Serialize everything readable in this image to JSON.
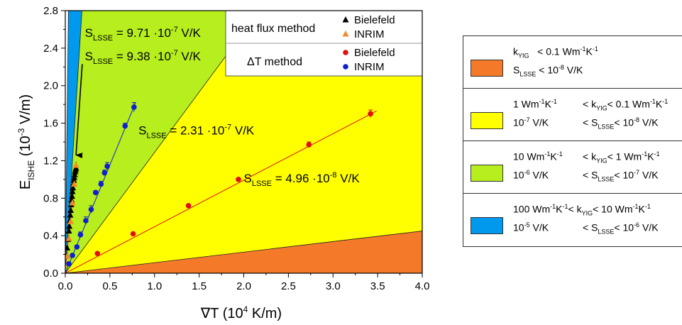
{
  "chart_data": {
    "type": "scatter",
    "xlabel": "∇T (10⁴ K/m)",
    "ylabel": "E_ISHE (10⁻³ V/m)",
    "xlim": [
      0,
      4.0
    ],
    "ylim": [
      0,
      2.8
    ],
    "xticks": [
      "0.0",
      "0.5",
      "1.0",
      "1.5",
      "2.0",
      "2.5",
      "3.0",
      "3.5",
      "4.0"
    ],
    "yticks": [
      "0.0",
      "0.4",
      "0.8",
      "1.2",
      "1.6",
      "2.0",
      "2.4",
      "2.8"
    ],
    "regions": [
      {
        "name": "orange",
        "color": "#f47a2a",
        "slope_top": 0.1125
      },
      {
        "name": "yellow",
        "color": "#ffff00",
        "slope_top": 1.2875
      },
      {
        "name": "green",
        "color": "#b6ee1e",
        "slope_top": 15.0
      },
      {
        "name": "blue",
        "color": "#0099ee",
        "slope_top": 80.0
      }
    ],
    "annotations": [
      {
        "text": "S_LSSE = 9.71 ·10⁻⁷ V/K",
        "main": "S",
        "sub": "LSSE",
        "rest": " = 9.71 ·10",
        "sup": "-7",
        "tail": " V/K",
        "x": 0.22,
        "y": 2.52
      },
      {
        "text": "S_LSSE = 9.38 ·10⁻⁷ V/K",
        "main": "S",
        "sub": "LSSE",
        "rest": " = 9.38 ·10",
        "sup": "-7",
        "tail": " V/K",
        "x": 0.22,
        "y": 2.27
      },
      {
        "text": "S_LSSE = 2.31 ·10⁻⁷ V/K",
        "main": "S",
        "sub": "LSSE",
        "rest": " = 2.31 ·10",
        "sup": "-7",
        "tail": " V/K",
        "x": 0.82,
        "y": 1.48
      },
      {
        "text": "S_LSSE = 4.96 ·10⁻⁸ V/K",
        "main": "S",
        "sub": "LSSE",
        "rest": " = 4.96 ·10",
        "sup": "-8",
        "tail": " V/K",
        "x": 2.0,
        "y": 0.97
      }
    ],
    "arrow": {
      "from": [
        0.19,
        2.23
      ],
      "to": [
        0.12,
        1.26
      ]
    },
    "legend": {
      "position": "top-right",
      "group1_title": "heat flux method",
      "group2_title": "ΔT method",
      "entries": [
        {
          "group": 1,
          "label": "Bielefeld",
          "marker": "triangle",
          "color": "#000000"
        },
        {
          "group": 1,
          "label": "INRIM",
          "marker": "triangle",
          "color": "#f48a2a"
        },
        {
          "group": 2,
          "label": "Bielefeld",
          "marker": "circle",
          "color": "#e01010"
        },
        {
          "group": 2,
          "label": "INRIM",
          "marker": "circle",
          "color": "#1020d0"
        }
      ]
    },
    "series": [
      {
        "label_ref": "heat flux method Bielefeld",
        "marker": "triangle",
        "color": "#000000",
        "fit_slope": 9.71,
        "x": [
          0.015,
          0.02,
          0.03,
          0.04,
          0.045,
          0.05,
          0.055,
          0.06,
          0.065,
          0.07,
          0.075,
          0.08,
          0.085,
          0.09,
          0.095,
          0.1,
          0.105,
          0.11,
          0.115,
          0.12
        ],
        "y": [
          0.19,
          0.27,
          0.36,
          0.45,
          0.5,
          0.56,
          0.62,
          0.67,
          0.73,
          0.78,
          0.82,
          0.87,
          0.91,
          0.95,
          0.99,
          1.02,
          1.05,
          1.08,
          1.1,
          1.12
        ]
      },
      {
        "label_ref": "heat flux method INRIM",
        "marker": "triangle",
        "color": "#f48a2a",
        "fit_slope": 9.38,
        "x": [
          0.02,
          0.04,
          0.06,
          0.08,
          0.1,
          0.12
        ],
        "y": [
          0.18,
          0.37,
          0.55,
          0.75,
          0.95,
          1.15
        ]
      },
      {
        "label_ref": "ΔT method Bielefeld",
        "marker": "circle",
        "color": "#e01010",
        "fit_slope": 0.496,
        "x": [
          0.36,
          0.76,
          1.38,
          1.94,
          2.73,
          3.42
        ],
        "y": [
          0.21,
          0.42,
          0.72,
          1.0,
          1.37,
          1.7
        ],
        "yerr": [
          0.0,
          0.0,
          0.01,
          0.01,
          0.03,
          0.04
        ]
      },
      {
        "label_ref": "ΔT method INRIM",
        "marker": "circle",
        "color": "#1020d0",
        "fit_slope": 2.31,
        "x": [
          0.04,
          0.08,
          0.13,
          0.17,
          0.23,
          0.29,
          0.34,
          0.4,
          0.44,
          0.47,
          0.67,
          0.77
        ],
        "y": [
          0.1,
          0.19,
          0.28,
          0.41,
          0.56,
          0.68,
          0.86,
          0.95,
          1.07,
          1.14,
          1.57,
          1.77
        ],
        "yerr": [
          0.0,
          0.0,
          0.02,
          0.03,
          0.04,
          0.04,
          0.02,
          0.03,
          0.03,
          0.04,
          0.03,
          0.05
        ]
      }
    ]
  },
  "key_table": {
    "rows": [
      {
        "color": "#f47a2a",
        "line1": {
          "a": "k",
          "a_sub": "YIG",
          "b": "< 0.1 Wm",
          "b_sup1": "-1",
          "b2": "K",
          "b_sup2": "-1"
        },
        "line2": {
          "a": "S",
          "a_sub": "LSSE",
          "b": "< 10",
          "b_sup": "-8",
          "b2": " V/K"
        },
        "text1": "k_YIG < 0.1 Wm⁻¹K⁻¹",
        "text2": "S_LSSE < 10⁻⁸ V/K"
      },
      {
        "color": "#ffff00",
        "text1a": "1 Wm⁻¹K⁻¹",
        "text1b": "< k_YIG < 0.1 Wm⁻¹K⁻¹",
        "text2a": "10⁻⁷ V/K",
        "text2b": "< S_LSSE < 10⁻⁸ V/K"
      },
      {
        "color": "#b6ee1e",
        "text1a": "10 Wm⁻¹K⁻¹",
        "text1b": "< k_YIG < 1 Wm⁻¹K⁻¹",
        "text2a": "10⁻⁶ V/K",
        "text2b": "< S_LSSE < 10⁻⁷ V/K"
      },
      {
        "color": "#0099ee",
        "text1a": "100 Wm⁻¹K⁻¹",
        "text1b": "< k_YIG < 10 Wm⁻¹K⁻¹",
        "text2a": "10⁻⁵ V/K",
        "text2b": "< S_LSSE < 10⁻⁶ V/K"
      }
    ]
  }
}
